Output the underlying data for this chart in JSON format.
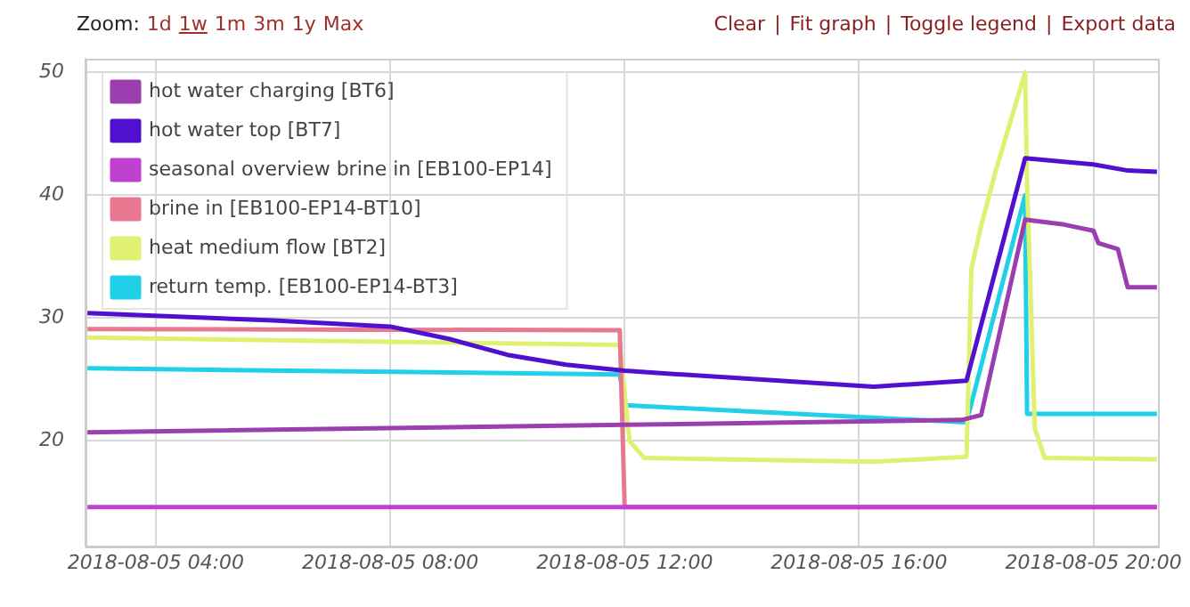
{
  "chart_data": {
    "type": "line",
    "annotations": [
      "Zoom:",
      "1d",
      "1w",
      "1m",
      "3m",
      "1y",
      "Max",
      "Clear",
      "|",
      "Fit graph",
      "|",
      "Toggle legend",
      "|",
      "Export data"
    ],
    "xlim": [
      "2018-08-05T02:48",
      "2018-08-05T21:06"
    ],
    "xticks": [
      {
        "value": "2018-08-05T04:00",
        "label": "2018-08-05 04:00"
      },
      {
        "value": "2018-08-05T08:00",
        "label": "2018-08-05 08:00"
      },
      {
        "value": "2018-08-05T12:00",
        "label": "2018-08-05 12:00"
      },
      {
        "value": "2018-08-05T16:00",
        "label": "2018-08-05 16:00"
      },
      {
        "value": "2018-08-05T20:00",
        "label": "2018-08-05 20:00"
      }
    ],
    "ylim": [
      11.4,
      51.1
    ],
    "yticks": [
      20,
      30,
      40,
      50
    ],
    "grid": true,
    "legend": "top left",
    "marker": "none",
    "line_style": "solid",
    "series": [
      {
        "name": "hot water charging [BT6]",
        "color": "#9b3fb0",
        "x": [
          "2018-08-05T02:50",
          "2018-08-05T12:00",
          "2018-08-05T17:45",
          "2018-08-05T18:05",
          "2018-08-05T18:50",
          "2018-08-05T19:30",
          "2018-08-05T20:00",
          "2018-08-05T20:05",
          "2018-08-05T20:25",
          "2018-08-05T20:35",
          "2018-08-05T21:05"
        ],
        "values": [
          20.7,
          21.3,
          21.7,
          22.1,
          38,
          37.6,
          37.1,
          36.1,
          35.6,
          32.5,
          32.5
        ]
      },
      {
        "name": "hot water top [BT7]",
        "color": "#5010d0",
        "x": [
          "2018-08-05T02:50",
          "2018-08-05T06:00",
          "2018-08-05T08:00",
          "2018-08-05T09:00",
          "2018-08-05T10:00",
          "2018-08-05T11:00",
          "2018-08-05T12:00",
          "2018-08-05T16:15",
          "2018-08-05T17:50",
          "2018-08-05T18:50",
          "2018-08-05T20:00",
          "2018-08-05T20:35",
          "2018-08-05T21:05"
        ],
        "values": [
          30.4,
          29.8,
          29.3,
          28.3,
          27,
          26.2,
          25.7,
          24.4,
          24.9,
          43,
          42.5,
          42,
          41.9
        ]
      },
      {
        "name": "seasonal overview brine in [EB100-EP14]",
        "color": "#c040d0",
        "x": [
          "2018-08-05T02:50",
          "2018-08-05T21:05"
        ],
        "values": [
          14.6,
          14.6
        ]
      },
      {
        "name": "brine in [EB100-EP14-BT10]",
        "color": "#e87890",
        "x": [
          "2018-08-05T02:50",
          "2018-08-05T11:55",
          "2018-08-05T12:00",
          "2018-08-05T21:05"
        ],
        "values": [
          29.1,
          29,
          14.6,
          14.6
        ]
      },
      {
        "name": "heat medium flow [BT2]",
        "color": "#e0f070",
        "x": [
          "2018-08-05T02:50",
          "2018-08-05T11:55",
          "2018-08-05T12:05",
          "2018-08-05T12:20",
          "2018-08-05T16:15",
          "2018-08-05T17:50",
          "2018-08-05T17:55",
          "2018-08-05T18:05",
          "2018-08-05T18:20",
          "2018-08-05T18:50",
          "2018-08-05T18:52",
          "2018-08-05T19:00",
          "2018-08-05T19:10",
          "2018-08-05T21:05"
        ],
        "values": [
          28.4,
          27.8,
          20,
          18.6,
          18.3,
          18.7,
          34,
          37.5,
          42,
          50,
          41,
          21,
          18.6,
          18.5
        ]
      },
      {
        "name": "return temp. [EB100-EP14-BT3]",
        "color": "#20d0e8",
        "x": [
          "2018-08-05T02:50",
          "2018-08-05T11:55",
          "2018-08-05T12:00",
          "2018-08-05T17:50",
          "2018-08-05T18:50",
          "2018-08-05T18:52",
          "2018-08-05T21:05"
        ],
        "values": [
          25.9,
          25.4,
          22.9,
          21.5,
          40,
          22.2,
          22.2
        ]
      }
    ]
  }
}
